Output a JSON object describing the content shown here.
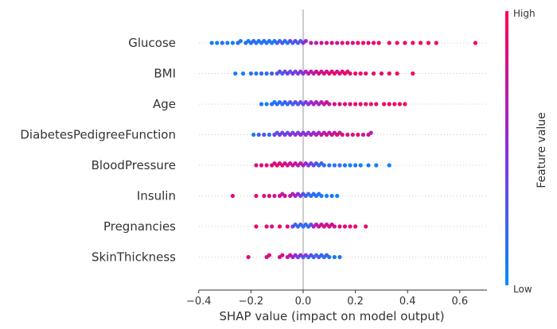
{
  "chart_data": {
    "type": "scatter",
    "subtype": "shap-beeswarm-summary",
    "xlabel": "SHAP value (impact on model output)",
    "xlim": [
      -0.4,
      0.7
    ],
    "xticks": [
      -0.4,
      -0.2,
      0.0,
      0.2,
      0.4,
      0.6
    ],
    "xtick_labels": [
      "−0.4",
      "−0.2",
      "0.0",
      "0.2",
      "0.4",
      "0.6"
    ],
    "colorbar": {
      "title": "Feature value",
      "high_label": "High",
      "low_label": "Low"
    },
    "colors": {
      "low": "#008bfb",
      "high": "#ff0052"
    },
    "features": [
      {
        "name": "Glucose",
        "points": [
          [
            -0.35,
            0.1
          ],
          [
            -0.33,
            0.05
          ],
          [
            -0.31,
            0.15
          ],
          [
            -0.29,
            0.1
          ],
          [
            -0.27,
            0.05
          ],
          [
            -0.25,
            0.2
          ],
          [
            -0.24,
            0.1
          ],
          [
            -0.22,
            0.15
          ],
          [
            -0.21,
            0.05
          ],
          [
            -0.2,
            0.1
          ],
          [
            -0.19,
            0.2
          ],
          [
            -0.18,
            0.15
          ],
          [
            -0.17,
            0.1
          ],
          [
            -0.16,
            0.05
          ],
          [
            -0.15,
            0.2
          ],
          [
            -0.14,
            0.1
          ],
          [
            -0.13,
            0.15
          ],
          [
            -0.12,
            0.05
          ],
          [
            -0.11,
            0.1
          ],
          [
            -0.1,
            0.25
          ],
          [
            -0.09,
            0.15
          ],
          [
            -0.08,
            0.3
          ],
          [
            -0.07,
            0.2
          ],
          [
            -0.06,
            0.1
          ],
          [
            -0.05,
            0.35
          ],
          [
            -0.04,
            0.15
          ],
          [
            -0.03,
            0.4
          ],
          [
            -0.02,
            0.2
          ],
          [
            -0.01,
            0.3
          ],
          [
            0.0,
            0.45
          ],
          [
            0.01,
            0.6
          ],
          [
            0.03,
            0.7
          ],
          [
            0.05,
            0.65
          ],
          [
            0.07,
            0.8
          ],
          [
            0.09,
            0.75
          ],
          [
            0.11,
            0.85
          ],
          [
            0.13,
            0.7
          ],
          [
            0.15,
            0.9
          ],
          [
            0.17,
            0.85
          ],
          [
            0.19,
            0.8
          ],
          [
            0.21,
            0.9
          ],
          [
            0.23,
            0.95
          ],
          [
            0.25,
            0.85
          ],
          [
            0.27,
            0.9
          ],
          [
            0.29,
            0.95
          ],
          [
            0.33,
            0.9
          ],
          [
            0.36,
            0.95
          ],
          [
            0.39,
            0.9
          ],
          [
            0.42,
            0.95
          ],
          [
            0.45,
            0.95
          ],
          [
            0.48,
            0.95
          ],
          [
            0.51,
            0.95
          ],
          [
            0.66,
            1.0
          ]
        ]
      },
      {
        "name": "BMI",
        "points": [
          [
            -0.26,
            0.05
          ],
          [
            -0.23,
            0.1
          ],
          [
            -0.2,
            0.15
          ],
          [
            -0.18,
            0.1
          ],
          [
            -0.16,
            0.2
          ],
          [
            -0.14,
            0.15
          ],
          [
            -0.12,
            0.3
          ],
          [
            -0.1,
            0.25
          ],
          [
            -0.09,
            0.4
          ],
          [
            -0.08,
            0.2
          ],
          [
            -0.07,
            0.35
          ],
          [
            -0.06,
            0.45
          ],
          [
            -0.05,
            0.3
          ],
          [
            -0.04,
            0.5
          ],
          [
            -0.03,
            0.4
          ],
          [
            -0.02,
            0.35
          ],
          [
            -0.01,
            0.55
          ],
          [
            0.0,
            0.45
          ],
          [
            0.01,
            0.6
          ],
          [
            0.02,
            0.7
          ],
          [
            0.03,
            0.75
          ],
          [
            0.04,
            0.65
          ],
          [
            0.05,
            0.8
          ],
          [
            0.06,
            0.85
          ],
          [
            0.07,
            0.75
          ],
          [
            0.08,
            0.9
          ],
          [
            0.09,
            0.8
          ],
          [
            0.1,
            0.85
          ],
          [
            0.11,
            0.9
          ],
          [
            0.12,
            0.95
          ],
          [
            0.13,
            0.8
          ],
          [
            0.14,
            0.9
          ],
          [
            0.15,
            0.85
          ],
          [
            0.16,
            0.95
          ],
          [
            0.17,
            0.9
          ],
          [
            0.18,
            0.85
          ],
          [
            0.2,
            0.9
          ],
          [
            0.22,
            0.95
          ],
          [
            0.24,
            0.9
          ],
          [
            0.27,
            0.95
          ],
          [
            0.3,
            0.9
          ],
          [
            0.33,
            0.95
          ],
          [
            0.36,
            0.95
          ],
          [
            0.42,
            1.0
          ]
        ]
      },
      {
        "name": "Age",
        "points": [
          [
            -0.16,
            0.1
          ],
          [
            -0.14,
            0.05
          ],
          [
            -0.12,
            0.15
          ],
          [
            -0.11,
            0.1
          ],
          [
            -0.1,
            0.2
          ],
          [
            -0.09,
            0.15
          ],
          [
            -0.08,
            0.1
          ],
          [
            -0.07,
            0.25
          ],
          [
            -0.06,
            0.15
          ],
          [
            -0.05,
            0.3
          ],
          [
            -0.04,
            0.2
          ],
          [
            -0.03,
            0.35
          ],
          [
            -0.02,
            0.25
          ],
          [
            -0.01,
            0.4
          ],
          [
            0.0,
            0.3
          ],
          [
            0.01,
            0.45
          ],
          [
            0.02,
            0.5
          ],
          [
            0.03,
            0.55
          ],
          [
            0.04,
            0.6
          ],
          [
            0.05,
            0.65
          ],
          [
            0.06,
            0.55
          ],
          [
            0.07,
            0.7
          ],
          [
            0.08,
            0.75
          ],
          [
            0.09,
            0.8
          ],
          [
            0.1,
            0.7
          ],
          [
            0.12,
            0.85
          ],
          [
            0.14,
            0.8
          ],
          [
            0.16,
            0.9
          ],
          [
            0.18,
            0.85
          ],
          [
            0.2,
            0.9
          ],
          [
            0.22,
            0.95
          ],
          [
            0.24,
            0.9
          ],
          [
            0.26,
            0.95
          ],
          [
            0.28,
            0.85
          ],
          [
            0.31,
            0.95
          ],
          [
            0.33,
            0.9
          ],
          [
            0.35,
            0.95
          ],
          [
            0.37,
            0.95
          ],
          [
            0.39,
            1.0
          ]
        ]
      },
      {
        "name": "DiabetesPedigreeFunction",
        "points": [
          [
            -0.19,
            0.1
          ],
          [
            -0.17,
            0.2
          ],
          [
            -0.15,
            0.3
          ],
          [
            -0.13,
            0.15
          ],
          [
            -0.11,
            0.4
          ],
          [
            -0.1,
            0.25
          ],
          [
            -0.09,
            0.5
          ],
          [
            -0.08,
            0.35
          ],
          [
            -0.07,
            0.45
          ],
          [
            -0.06,
            0.3
          ],
          [
            -0.05,
            0.55
          ],
          [
            -0.04,
            0.4
          ],
          [
            -0.03,
            0.5
          ],
          [
            -0.02,
            0.35
          ],
          [
            -0.01,
            0.6
          ],
          [
            0.0,
            0.45
          ],
          [
            0.01,
            0.55
          ],
          [
            0.02,
            0.4
          ],
          [
            0.03,
            0.65
          ],
          [
            0.04,
            0.5
          ],
          [
            0.05,
            0.7
          ],
          [
            0.06,
            0.55
          ],
          [
            0.07,
            0.75
          ],
          [
            0.08,
            0.6
          ],
          [
            0.09,
            0.8
          ],
          [
            0.1,
            0.65
          ],
          [
            0.11,
            0.85
          ],
          [
            0.12,
            0.7
          ],
          [
            0.13,
            0.9
          ],
          [
            0.14,
            0.75
          ],
          [
            0.15,
            0.85
          ],
          [
            0.17,
            0.9
          ],
          [
            0.19,
            0.8
          ],
          [
            0.21,
            0.95
          ],
          [
            0.23,
            0.7
          ],
          [
            0.25,
            0.85
          ],
          [
            0.26,
            0.6
          ]
        ]
      },
      {
        "name": "BloodPressure",
        "points": [
          [
            -0.18,
            0.8
          ],
          [
            -0.16,
            0.9
          ],
          [
            -0.14,
            0.85
          ],
          [
            -0.12,
            0.9
          ],
          [
            -0.11,
            0.8
          ],
          [
            -0.1,
            0.95
          ],
          [
            -0.09,
            0.85
          ],
          [
            -0.08,
            0.9
          ],
          [
            -0.07,
            0.8
          ],
          [
            -0.06,
            0.75
          ],
          [
            -0.05,
            0.85
          ],
          [
            -0.04,
            0.7
          ],
          [
            -0.03,
            0.8
          ],
          [
            -0.02,
            0.65
          ],
          [
            -0.01,
            0.75
          ],
          [
            0.0,
            0.6
          ],
          [
            0.01,
            0.55
          ],
          [
            0.02,
            0.45
          ],
          [
            0.03,
            0.35
          ],
          [
            0.04,
            0.4
          ],
          [
            0.05,
            0.3
          ],
          [
            0.06,
            0.2
          ],
          [
            0.07,
            0.25
          ],
          [
            0.08,
            0.15
          ],
          [
            0.1,
            0.2
          ],
          [
            0.12,
            0.1
          ],
          [
            0.14,
            0.15
          ],
          [
            0.16,
            0.1
          ],
          [
            0.18,
            0.05
          ],
          [
            0.2,
            0.1
          ],
          [
            0.22,
            0.05
          ],
          [
            0.25,
            0.1
          ],
          [
            0.28,
            0.05
          ],
          [
            0.33,
            0.05
          ]
        ]
      },
      {
        "name": "Insulin",
        "points": [
          [
            -0.27,
            0.9
          ],
          [
            -0.18,
            0.85
          ],
          [
            -0.15,
            0.8
          ],
          [
            -0.13,
            0.9
          ],
          [
            -0.11,
            0.75
          ],
          [
            -0.09,
            0.85
          ],
          [
            -0.08,
            0.7
          ],
          [
            -0.07,
            0.8
          ],
          [
            -0.05,
            0.65
          ],
          [
            -0.04,
            0.75
          ],
          [
            -0.03,
            0.6
          ],
          [
            -0.02,
            0.5
          ],
          [
            -0.01,
            0.4
          ],
          [
            0.0,
            0.35
          ],
          [
            0.01,
            0.25
          ],
          [
            0.02,
            0.2
          ],
          [
            0.03,
            0.15
          ],
          [
            0.04,
            0.2
          ],
          [
            0.05,
            0.1
          ],
          [
            0.06,
            0.15
          ],
          [
            0.07,
            0.1
          ],
          [
            0.09,
            0.05
          ],
          [
            0.11,
            0.1
          ],
          [
            0.13,
            0.05
          ]
        ]
      },
      {
        "name": "Pregnancies",
        "points": [
          [
            -0.18,
            0.9
          ],
          [
            -0.14,
            0.85
          ],
          [
            -0.12,
            0.8
          ],
          [
            -0.09,
            0.9
          ],
          [
            -0.06,
            0.85
          ],
          [
            -0.04,
            0.4
          ],
          [
            -0.03,
            0.2
          ],
          [
            -0.02,
            0.15
          ],
          [
            -0.01,
            0.25
          ],
          [
            0.0,
            0.1
          ],
          [
            0.01,
            0.2
          ],
          [
            0.02,
            0.15
          ],
          [
            0.03,
            0.3
          ],
          [
            0.04,
            0.6
          ],
          [
            0.05,
            0.7
          ],
          [
            0.06,
            0.75
          ],
          [
            0.07,
            0.8
          ],
          [
            0.08,
            0.85
          ],
          [
            0.09,
            0.7
          ],
          [
            0.1,
            0.8
          ],
          [
            0.11,
            0.9
          ],
          [
            0.12,
            0.75
          ],
          [
            0.14,
            0.85
          ],
          [
            0.16,
            0.9
          ],
          [
            0.18,
            0.85
          ],
          [
            0.2,
            0.95
          ],
          [
            0.24,
            0.9
          ]
        ]
      },
      {
        "name": "SkinThickness",
        "points": [
          [
            -0.21,
            0.85
          ],
          [
            -0.14,
            0.8
          ],
          [
            -0.13,
            0.9
          ],
          [
            -0.09,
            0.75
          ],
          [
            -0.08,
            0.85
          ],
          [
            -0.06,
            0.7
          ],
          [
            -0.05,
            0.8
          ],
          [
            -0.04,
            0.6
          ],
          [
            -0.03,
            0.5
          ],
          [
            -0.02,
            0.4
          ],
          [
            -0.01,
            0.55
          ],
          [
            0.0,
            0.3
          ],
          [
            0.01,
            0.45
          ],
          [
            0.02,
            0.2
          ],
          [
            0.03,
            0.35
          ],
          [
            0.04,
            0.25
          ],
          [
            0.05,
            0.15
          ],
          [
            0.06,
            0.3
          ],
          [
            0.07,
            0.2
          ],
          [
            0.08,
            0.1
          ],
          [
            0.09,
            0.25
          ],
          [
            0.1,
            0.15
          ],
          [
            0.12,
            0.1
          ],
          [
            0.14,
            0.1
          ]
        ]
      }
    ]
  }
}
